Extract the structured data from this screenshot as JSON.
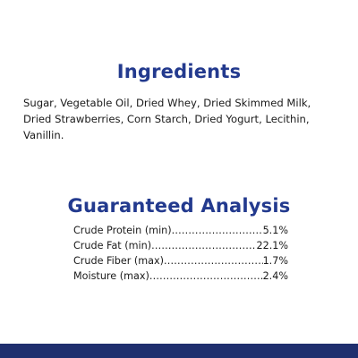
{
  "ingredients": {
    "heading": "Ingredients",
    "text": "Sugar, Vegetable Oil, Dried Whey, Dried Skimmed Milk, Dried Strawberries, Corn Starch, Dried Yogurt, Lecithin, Vanillin."
  },
  "analysis": {
    "heading": "Guaranteed Analysis",
    "rows": [
      {
        "name": "Crude Protein (min)",
        "value": "5.1%"
      },
      {
        "name": "Crude Fat (min)",
        "value": "22.1%"
      },
      {
        "name": "Crude Fiber (max)",
        "value": "1.7%"
      },
      {
        "name": "Moisture (max)",
        "value": "2.4%"
      }
    ]
  },
  "colors": {
    "heading": "#233a8e",
    "footer_bar": "#1f2f6e",
    "text": "#1a1a1a",
    "background": "#ffffff"
  }
}
